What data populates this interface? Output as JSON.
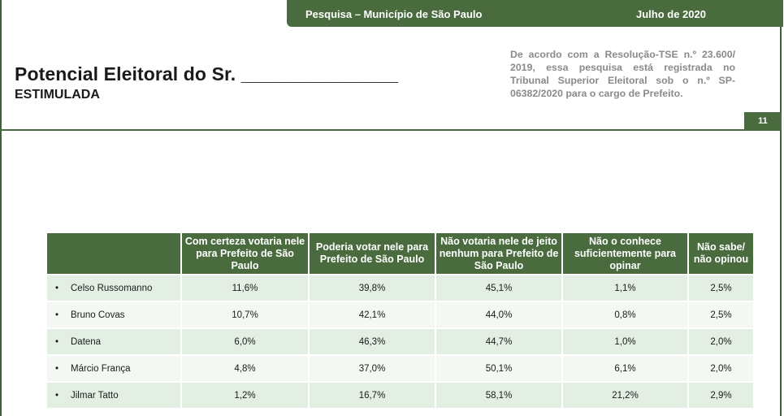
{
  "header": {
    "survey_label": "Pesquisa – Município de São Paulo",
    "date_label": "Julho de 2020"
  },
  "title": "Potencial Eleitoral do Sr. _______________",
  "subtitle": "ESTIMULADA",
  "registration_note": "De acordo com a Resolução-TSE n.º 23.600/ 2019, essa pesquisa está registrada no Tribunal Superior Eleitoral sob o n.º SP-06382/2020 para o cargo de Prefeito.",
  "page_number": "11",
  "colors": {
    "brand_green": "#4a6b3e",
    "row_light": "#e4efe4",
    "row_lighter": "#f3f8f3"
  },
  "table": {
    "columns": [
      "Com certeza votaria nele para Prefeito de São Paulo",
      "Poderia votar nele para Prefeito de São Paulo",
      "Não votaria nele de jeito nenhum para Prefeito de São Paulo",
      "Não o conhece suficientemente para opinar",
      "Não sabe/ não opinou"
    ],
    "bullet": "•",
    "rows": [
      {
        "name": "Celso Russomanno",
        "values": [
          "11,6%",
          "39,8%",
          "45,1%",
          "1,1%",
          "2,5%"
        ]
      },
      {
        "name": "Bruno Covas",
        "values": [
          "10,7%",
          "42,1%",
          "44,0%",
          "0,8%",
          "2,5%"
        ]
      },
      {
        "name": "Datena",
        "values": [
          "6,0%",
          "46,3%",
          "44,7%",
          "1,0%",
          "2,0%"
        ]
      },
      {
        "name": "Márcio França",
        "values": [
          "4,8%",
          "37,0%",
          "50,1%",
          "6,1%",
          "2,0%"
        ]
      },
      {
        "name": "Jilmar Tatto",
        "values": [
          "1,2%",
          "16,7%",
          "58,1%",
          "21,2%",
          "2,9%"
        ]
      }
    ]
  }
}
